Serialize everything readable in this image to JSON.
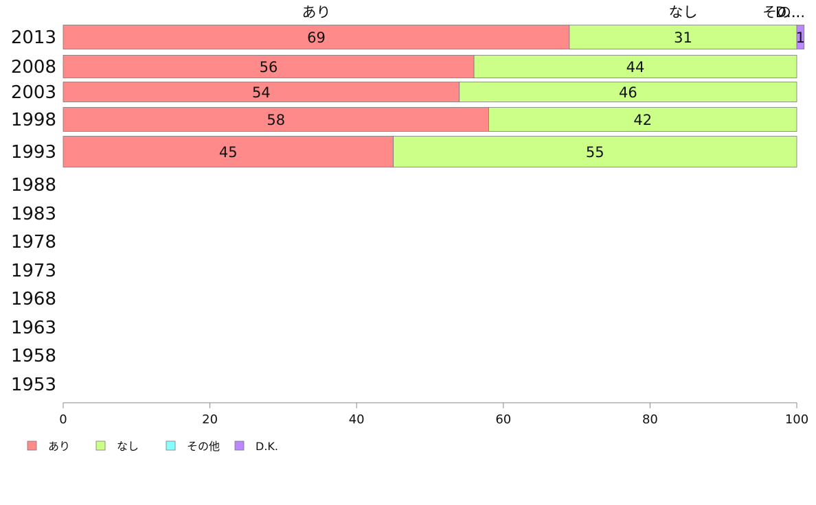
{
  "chart_data": {
    "type": "bar",
    "orientation": "horizontal",
    "stacked": true,
    "categories": [
      "2013",
      "2008",
      "2003",
      "1998",
      "1993",
      "1988",
      "1983",
      "1978",
      "1973",
      "1968",
      "1963",
      "1958",
      "1953"
    ],
    "series": [
      {
        "name": "あり",
        "color": "#ff8a8a",
        "values": [
          69,
          56,
          54,
          58,
          45,
          null,
          null,
          null,
          null,
          null,
          null,
          null,
          null
        ]
      },
      {
        "name": "なし",
        "color": "#ccff88",
        "values": [
          31,
          44,
          46,
          42,
          55,
          null,
          null,
          null,
          null,
          null,
          null,
          null,
          null
        ]
      },
      {
        "name": "その他",
        "color": "#88ffff",
        "values": [
          0,
          0,
          0,
          0,
          0,
          null,
          null,
          null,
          null,
          null,
          null,
          null,
          null
        ]
      },
      {
        "name": "D.K.",
        "color": "#bb88ff",
        "values": [
          1,
          0,
          0,
          0,
          0,
          null,
          null,
          null,
          null,
          null,
          null,
          null,
          null
        ]
      }
    ],
    "value_labels": [
      [
        "69",
        "31",
        "",
        "1"
      ],
      [
        "56",
        "44",
        "",
        ""
      ],
      [
        "54",
        "46",
        "",
        ""
      ],
      [
        "58",
        "42",
        "",
        ""
      ],
      [
        "45",
        "55",
        "",
        ""
      ]
    ],
    "top_labels": [
      "あり",
      "なし",
      "その...",
      "D..."
    ],
    "xlim": [
      0,
      100
    ],
    "xticks": [
      "0",
      "20",
      "40",
      "60",
      "80",
      "100"
    ],
    "grid": false,
    "legend_position": "bottom-left",
    "title": "",
    "xlabel": "",
    "ylabel": ""
  }
}
